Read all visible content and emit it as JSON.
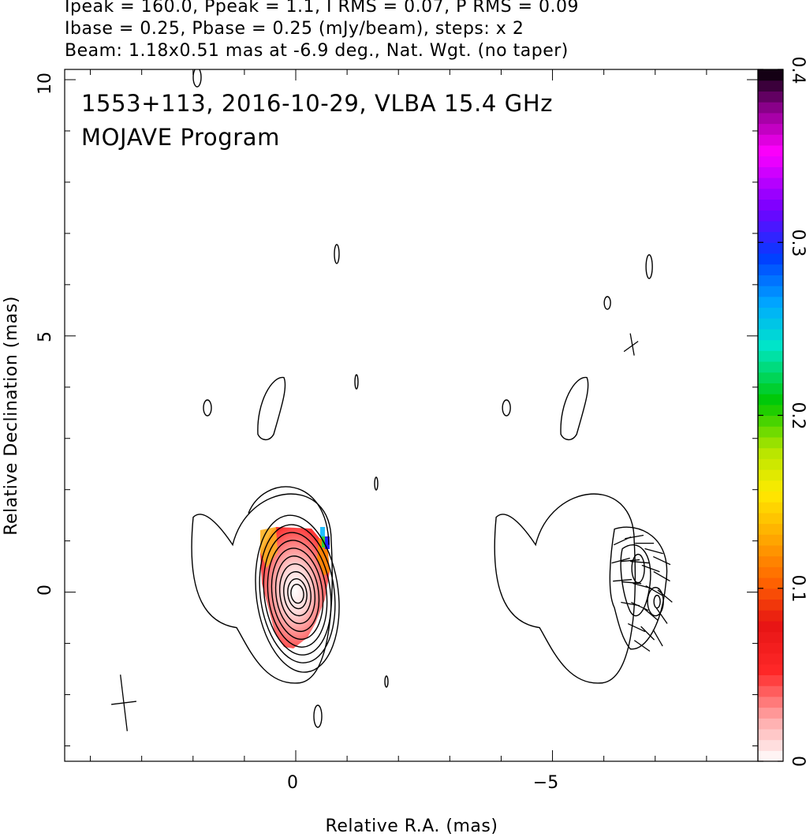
{
  "header": {
    "line1": "Ipeak = 160.0, Ppeak = 1.1, I RMS = 0.07, P RMS = 0.09",
    "line2": "Ibase = 0.25, Pbase = 0.25 (mJy/beam), steps: x 2",
    "line3": "Beam: 1.18x0.51 mas at -6.9 deg., Nat. Wgt. (no taper)"
  },
  "chart_data": {
    "type": "heatmap",
    "title": "1553+113, 2016-10-29, VLBA 15.4 GHz",
    "subtitle": "MOJAVE Program",
    "xlabel": "Relative R.A. (mas)",
    "ylabel": "Relative Declination (mas)",
    "xlim": [
      4.5,
      -9
    ],
    "ylim": [
      -3.3,
      10.2
    ],
    "x_ticks": [
      0,
      -5
    ],
    "x_tick_labels": [
      "0",
      "−5"
    ],
    "y_ticks": [
      0,
      5,
      10
    ],
    "y_tick_labels": [
      "0",
      "5",
      "10"
    ],
    "colorbar": {
      "range": [
        0,
        0.4
      ],
      "ticks": [
        0,
        0.1,
        0.2,
        0.3,
        0.4
      ],
      "tick_labels": [
        "0",
        "0.1",
        "0.2",
        "0.3",
        "0.4"
      ]
    },
    "beam": {
      "major_mas": 1.18,
      "minor_mas": 0.51,
      "pa_deg": -6.9
    },
    "image_panels": [
      {
        "name": "",
        "center_ra": 0
      },
      {
        "name": "",
        "center_ra": -5.9
      }
    ]
  }
}
